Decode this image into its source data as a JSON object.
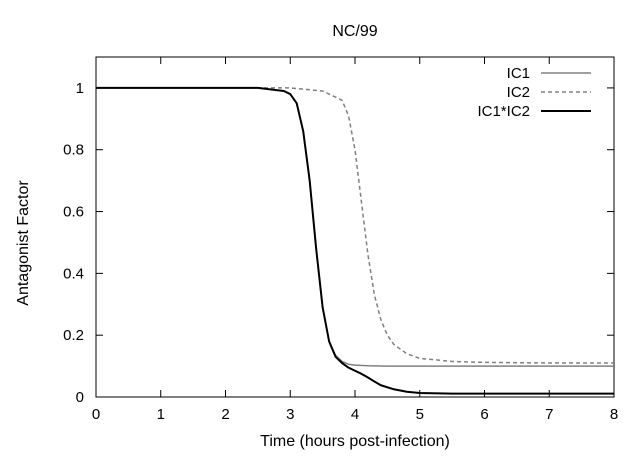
{
  "chart_data": {
    "type": "line",
    "title": "NC/99",
    "xlabel": "Time (hours post-infection)",
    "ylabel": "Antagonist Factor",
    "xlim": [
      0,
      8
    ],
    "ylim": [
      0,
      1.1
    ],
    "xticks": [
      "0",
      "1",
      "2",
      "3",
      "4",
      "5",
      "6",
      "7",
      "8"
    ],
    "yticks": [
      "0",
      "0.2",
      "0.4",
      "0.6",
      "0.8",
      "1"
    ],
    "grid": false,
    "legend_position": "top-right",
    "series": [
      {
        "name": "IC1",
        "color": "#808080",
        "dash": "solid",
        "x": [
          0,
          2.5,
          2.9,
          3.0,
          3.1,
          3.2,
          3.3,
          3.4,
          3.5,
          3.6,
          3.7,
          3.8,
          3.9,
          4.0,
          4.2,
          4.5,
          5,
          6,
          7,
          8
        ],
        "y": [
          1.0,
          1.0,
          0.99,
          0.98,
          0.95,
          0.86,
          0.7,
          0.48,
          0.29,
          0.18,
          0.135,
          0.115,
          0.106,
          0.103,
          0.101,
          0.1,
          0.1,
          0.1,
          0.1,
          0.1
        ]
      },
      {
        "name": "IC2",
        "color": "#808080",
        "dash": "dashed",
        "x": [
          0,
          3.0,
          3.5,
          3.8,
          3.9,
          4.0,
          4.1,
          4.2,
          4.3,
          4.4,
          4.5,
          4.6,
          4.8,
          5.0,
          5.5,
          6,
          7,
          8
        ],
        "y": [
          1.0,
          1.0,
          0.99,
          0.96,
          0.91,
          0.8,
          0.63,
          0.46,
          0.33,
          0.25,
          0.2,
          0.17,
          0.14,
          0.125,
          0.115,
          0.112,
          0.11,
          0.11
        ]
      },
      {
        "name": "IC1*IC2",
        "color": "#000000",
        "dash": "solid",
        "x": [
          0,
          2.5,
          2.9,
          3.0,
          3.1,
          3.2,
          3.3,
          3.4,
          3.5,
          3.6,
          3.7,
          3.8,
          3.9,
          4.0,
          4.1,
          4.2,
          4.3,
          4.4,
          4.6,
          4.8,
          5.0,
          5.5,
          6,
          7,
          8
        ],
        "y": [
          1.0,
          1.0,
          0.99,
          0.98,
          0.95,
          0.86,
          0.7,
          0.48,
          0.29,
          0.18,
          0.13,
          0.11,
          0.095,
          0.085,
          0.075,
          0.063,
          0.05,
          0.038,
          0.025,
          0.017,
          0.013,
          0.011,
          0.011,
          0.011,
          0.011
        ]
      }
    ]
  }
}
